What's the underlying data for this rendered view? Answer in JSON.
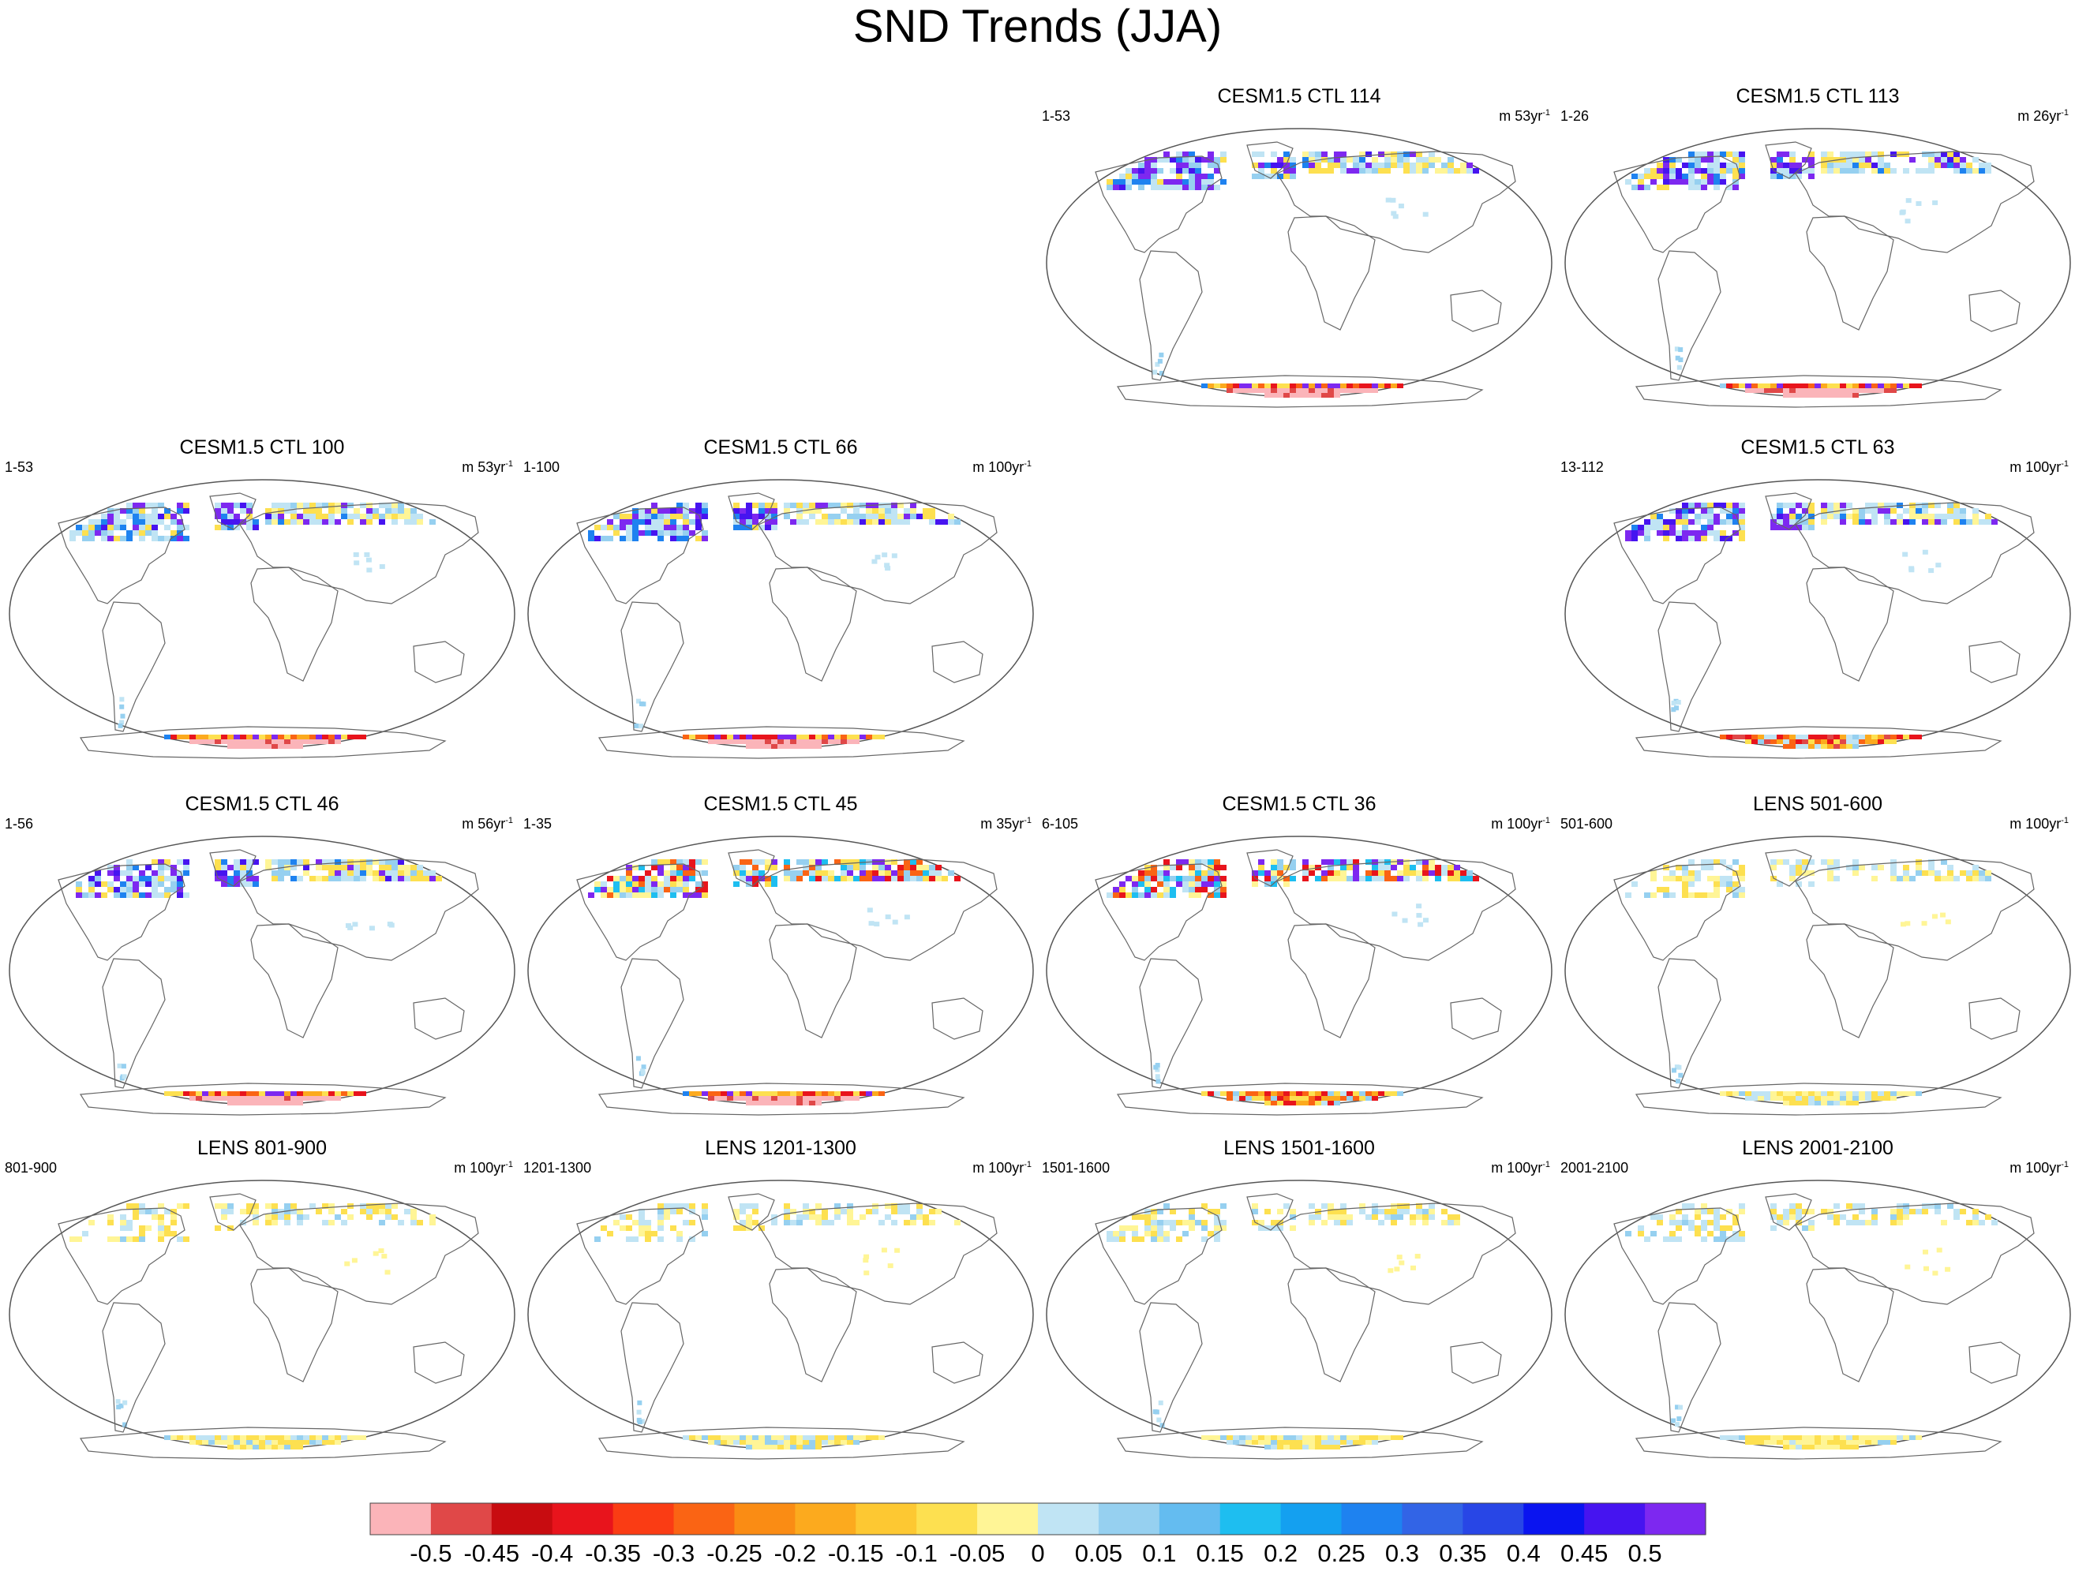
{
  "chart_data": {
    "type": "heatmap",
    "title": "SND Trends (JJA)",
    "variable": "SND",
    "season": "JJA",
    "panels": [
      {
        "title": "CESM1.5 CTL 114",
        "range": "1-53",
        "units": "m 53yr",
        "unit_exp": "-1",
        "nh_pattern": "purple",
        "aa_pattern": "pink-core",
        "grid_pos": "row1-col3"
      },
      {
        "title": "CESM1.5 CTL 113",
        "range": "1-26",
        "units": "m 26yr",
        "unit_exp": "-1",
        "nh_pattern": "purple",
        "aa_pattern": "pink-core",
        "grid_pos": "row1-col4"
      },
      {
        "title": "CESM1.5 CTL 100",
        "range": "1-53",
        "units": "m 53yr",
        "unit_exp": "-1",
        "nh_pattern": "purple",
        "aa_pattern": "pink-core",
        "grid_pos": "row2-col1"
      },
      {
        "title": "CESM1.5 CTL 66",
        "range": "1-100",
        "units": "m 100yr",
        "unit_exp": "-1",
        "nh_pattern": "purple",
        "aa_pattern": "pink-core",
        "grid_pos": "row2-col2"
      },
      {
        "title": "CESM1.5 CTL 63",
        "range": "13-112",
        "units": "m 100yr",
        "unit_exp": "-1",
        "nh_pattern": "purple",
        "aa_pattern": "red-orange",
        "grid_pos": "row2-col4"
      },
      {
        "title": "CESM1.5 CTL 46",
        "range": "1-56",
        "units": "m 56yr",
        "unit_exp": "-1",
        "nh_pattern": "purple",
        "aa_pattern": "pink-core",
        "grid_pos": "row3-col1"
      },
      {
        "title": "CESM1.5 CTL 45",
        "range": "1-35",
        "units": "m 35yr",
        "unit_exp": "-1",
        "nh_pattern": "mixed",
        "aa_pattern": "pink-core",
        "grid_pos": "row3-col2"
      },
      {
        "title": "CESM1.5 CTL 36",
        "range": "6-105",
        "units": "m 100yr",
        "unit_exp": "-1",
        "nh_pattern": "mixed",
        "aa_pattern": "orange",
        "grid_pos": "row3-col3"
      },
      {
        "title": "LENS 501-600",
        "range": "501-600",
        "units": "m 100yr",
        "unit_exp": "-1",
        "nh_pattern": "weak",
        "aa_pattern": "weak",
        "grid_pos": "row3-col4"
      },
      {
        "title": "LENS 801-900",
        "range": "801-900",
        "units": "m 100yr",
        "unit_exp": "-1",
        "nh_pattern": "weak",
        "aa_pattern": "weak",
        "grid_pos": "row4-col1"
      },
      {
        "title": "LENS 1201-1300",
        "range": "1201-1300",
        "units": "m 100yr",
        "unit_exp": "-1",
        "nh_pattern": "weak",
        "aa_pattern": "weak",
        "grid_pos": "row4-col2"
      },
      {
        "title": "LENS 1501-1600",
        "range": "1501-1600",
        "units": "m 100yr",
        "unit_exp": "-1",
        "nh_pattern": "weak",
        "aa_pattern": "weak",
        "grid_pos": "row4-col3"
      },
      {
        "title": "LENS 2001-2100",
        "range": "2001-2100",
        "units": "m 100yr",
        "unit_exp": "-1",
        "nh_pattern": "weak",
        "aa_pattern": "weak",
        "grid_pos": "row4-col4"
      }
    ],
    "colorbar": {
      "labels": [
        "-0.5",
        "-0.45",
        "-0.4",
        "-0.35",
        "-0.3",
        "-0.25",
        "-0.2",
        "-0.15",
        "-0.1",
        "-0.05",
        "0",
        "0.05",
        "0.1",
        "0.15",
        "0.2",
        "0.25",
        "0.3",
        "0.35",
        "0.4",
        "0.45",
        "0.5"
      ],
      "colors": [
        "#fbb4b9",
        "#e04848",
        "#c80c10",
        "#e8141c",
        "#fa3c14",
        "#fa6414",
        "#fa8c14",
        "#fcaa1e",
        "#fdc832",
        "#fde050",
        "#fff596",
        "#c0e4f4",
        "#96d0f0",
        "#64bcf0",
        "#1ebef0",
        "#14a0f0",
        "#1e82f0",
        "#3264e6",
        "#2846e6",
        "#0a14f0",
        "#4614f0",
        "#7d28f0"
      ]
    }
  },
  "page_title": "SND Trends (JJA)"
}
